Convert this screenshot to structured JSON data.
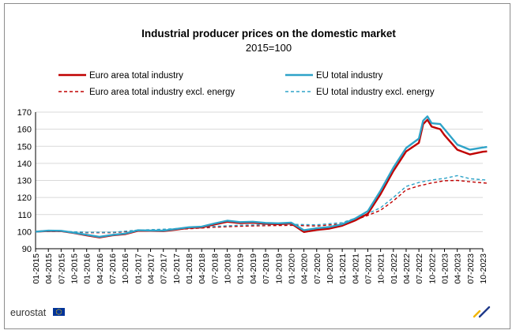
{
  "chart_data": {
    "type": "line",
    "title": "Industrial producer prices on the domestic market",
    "subtitle": "2015=100",
    "ylim": [
      90,
      170
    ],
    "yticks": [
      90,
      100,
      110,
      120,
      130,
      140,
      150,
      160,
      170
    ],
    "xticks": [
      "01-2015",
      "04-2015",
      "07-2015",
      "10-2015",
      "01-2016",
      "04-2016",
      "07-2016",
      "10-2016",
      "01-2017",
      "04-2017",
      "07-2017",
      "10-2017",
      "01-2018",
      "04-2018",
      "07-2018",
      "10-2018",
      "01-2019",
      "04-2019",
      "07-2019",
      "10-2019",
      "01-2020",
      "04-2020",
      "07-2020",
      "10-2020",
      "01-2021",
      "04-2021",
      "07-2021",
      "10-2021",
      "01-2022",
      "04-2022",
      "07-2022",
      "10-2022",
      "01-2023",
      "04-2023",
      "07-2023",
      "10-2023"
    ],
    "grid": "horizontal",
    "legend_position": "top",
    "series": [
      {
        "name": "Euro area total industry",
        "color": "#c00000",
        "dash": "solid",
        "points": [
          [
            "01-2015",
            100
          ],
          [
            "04-2015",
            100.4
          ],
          [
            "07-2015",
            100.3
          ],
          [
            "10-2015",
            99.2
          ],
          [
            "01-2016",
            97.8
          ],
          [
            "04-2016",
            96.6
          ],
          [
            "07-2016",
            97.8
          ],
          [
            "10-2016",
            98.5
          ],
          [
            "01-2017",
            100.5
          ],
          [
            "04-2017",
            100.5
          ],
          [
            "07-2017",
            100.3
          ],
          [
            "10-2017",
            101.2
          ],
          [
            "01-2018",
            102.2
          ],
          [
            "04-2018",
            102.5
          ],
          [
            "07-2018",
            104.2
          ],
          [
            "10-2018",
            105.8
          ],
          [
            "01-2019",
            105
          ],
          [
            "04-2019",
            105.2
          ],
          [
            "07-2019",
            104.6
          ],
          [
            "10-2019",
            104.4
          ],
          [
            "01-2020",
            104.8
          ],
          [
            "04-2020",
            99.8
          ],
          [
            "07-2020",
            101
          ],
          [
            "10-2020",
            101.8
          ],
          [
            "01-2021",
            103.5
          ],
          [
            "04-2021",
            106.5
          ],
          [
            "07-2021",
            110.5
          ],
          [
            "10-2021",
            122
          ],
          [
            "01-2022",
            135.5
          ],
          [
            "04-2022",
            147
          ],
          [
            "07-2022",
            152
          ],
          [
            "08-2022",
            163
          ],
          [
            "09-2022",
            165.5
          ],
          [
            "10-2022",
            161.5
          ],
          [
            "12-2022",
            160
          ],
          [
            "01-2023",
            156.5
          ],
          [
            "04-2023",
            148
          ],
          [
            "07-2023",
            145.2
          ],
          [
            "10-2023",
            146.8
          ],
          [
            "11-2023",
            147
          ]
        ]
      },
      {
        "name": "EU total industry",
        "color": "#2ea3c8",
        "dash": "solid",
        "points": [
          [
            "01-2015",
            100
          ],
          [
            "04-2015",
            100.6
          ],
          [
            "07-2015",
            100.5
          ],
          [
            "10-2015",
            99.4
          ],
          [
            "01-2016",
            98.2
          ],
          [
            "04-2016",
            97
          ],
          [
            "07-2016",
            98.1
          ],
          [
            "10-2016",
            98.9
          ],
          [
            "01-2017",
            100.8
          ],
          [
            "04-2017",
            100.7
          ],
          [
            "07-2017",
            100.6
          ],
          [
            "10-2017",
            101.6
          ],
          [
            "01-2018",
            102.6
          ],
          [
            "04-2018",
            102.9
          ],
          [
            "07-2018",
            104.8
          ],
          [
            "10-2018",
            106.4
          ],
          [
            "01-2019",
            105.6
          ],
          [
            "04-2019",
            105.8
          ],
          [
            "07-2019",
            105.1
          ],
          [
            "10-2019",
            104.9
          ],
          [
            "01-2020",
            105.3
          ],
          [
            "04-2020",
            100.8
          ],
          [
            "07-2020",
            102
          ],
          [
            "10-2020",
            102.7
          ],
          [
            "01-2021",
            104.4
          ],
          [
            "04-2021",
            107.6
          ],
          [
            "07-2021",
            112
          ],
          [
            "10-2021",
            124
          ],
          [
            "01-2022",
            137.5
          ],
          [
            "04-2022",
            149
          ],
          [
            "07-2022",
            154.5
          ],
          [
            "08-2022",
            165
          ],
          [
            "09-2022",
            167.5
          ],
          [
            "10-2022",
            163.5
          ],
          [
            "12-2022",
            163
          ],
          [
            "01-2023",
            160
          ],
          [
            "04-2023",
            151
          ],
          [
            "07-2023",
            148
          ],
          [
            "10-2023",
            149.3
          ],
          [
            "11-2023",
            149.6
          ]
        ]
      },
      {
        "name": "Euro area total industry excl. energy",
        "color": "#c00000",
        "dash": "dashed",
        "points": [
          [
            "01-2015",
            100
          ],
          [
            "07-2015",
            100.1
          ],
          [
            "01-2016",
            99.4
          ],
          [
            "07-2016",
            99.4
          ],
          [
            "01-2017",
            100.6
          ],
          [
            "07-2017",
            101
          ],
          [
            "01-2018",
            101.7
          ],
          [
            "07-2018",
            102.6
          ],
          [
            "01-2019",
            103.2
          ],
          [
            "07-2019",
            103.5
          ],
          [
            "01-2020",
            103.7
          ],
          [
            "07-2020",
            103.3
          ],
          [
            "01-2021",
            104.5
          ],
          [
            "04-2021",
            106.8
          ],
          [
            "07-2021",
            109.5
          ],
          [
            "10-2021",
            112.5
          ],
          [
            "01-2022",
            118
          ],
          [
            "04-2022",
            124.5
          ],
          [
            "07-2022",
            126.8
          ],
          [
            "10-2022",
            128.5
          ],
          [
            "01-2023",
            129.8
          ],
          [
            "04-2023",
            130
          ],
          [
            "07-2023",
            129.2
          ],
          [
            "11-2023",
            128.4
          ]
        ]
      },
      {
        "name": "EU total industry excl. energy",
        "color": "#2ea3c8",
        "dash": "dashed",
        "points": [
          [
            "01-2015",
            100
          ],
          [
            "07-2015",
            100.2
          ],
          [
            "01-2016",
            99.6
          ],
          [
            "07-2016",
            99.6
          ],
          [
            "01-2017",
            100.9
          ],
          [
            "07-2017",
            101.4
          ],
          [
            "01-2018",
            102.1
          ],
          [
            "07-2018",
            103.1
          ],
          [
            "01-2019",
            103.8
          ],
          [
            "07-2019",
            104.1
          ],
          [
            "01-2020",
            104.3
          ],
          [
            "07-2020",
            104
          ],
          [
            "01-2021",
            105.3
          ],
          [
            "04-2021",
            107.8
          ],
          [
            "07-2021",
            110.6
          ],
          [
            "10-2021",
            114
          ],
          [
            "01-2022",
            120
          ],
          [
            "04-2022",
            126.5
          ],
          [
            "07-2022",
            128.8
          ],
          [
            "10-2022",
            130.3
          ],
          [
            "01-2023",
            131.2
          ],
          [
            "04-2023",
            132.8
          ],
          [
            "07-2023",
            131
          ],
          [
            "11-2023",
            130.2
          ]
        ]
      }
    ]
  },
  "footer": {
    "brand": "eurostat",
    "flag_color": "#003399",
    "star_color": "#ffcc00"
  }
}
